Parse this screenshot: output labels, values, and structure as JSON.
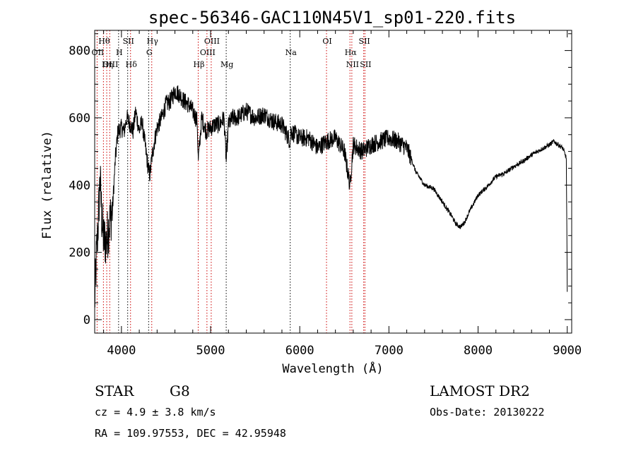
{
  "chart_data": {
    "type": "line",
    "title": "spec-56346-GAC110N45V1_sp01-220.fits",
    "xlabel": "Wavelength (Å)",
    "ylabel": "Flux (relative)",
    "xlim": [
      3700,
      9050
    ],
    "ylim": [
      -40,
      860
    ],
    "x_ticks": [
      4000,
      5000,
      6000,
      7000,
      8000,
      9000
    ],
    "y_ticks": [
      0,
      200,
      400,
      600,
      800
    ],
    "grid": false,
    "series": [
      {
        "x": [
          3700,
          3720,
          3740,
          3760,
          3780,
          3800,
          3830,
          3860,
          3900,
          3930,
          3960,
          4000,
          4030,
          4060,
          4100,
          4130,
          4160,
          4200,
          4230,
          4260,
          4300,
          4320,
          4340,
          4370,
          4400,
          4450,
          4500,
          4550,
          4600,
          4650,
          4700,
          4750,
          4800,
          4850,
          4861,
          4900,
          4950,
          5000,
          5050,
          5100,
          5150,
          5175,
          5200,
          5250,
          5300,
          5400,
          5500,
          5600,
          5700,
          5800,
          5893,
          5900,
          6000,
          6100,
          6200,
          6300,
          6400,
          6500,
          6563,
          6600,
          6700,
          6800,
          6900,
          7000,
          7100,
          7200,
          7250,
          7300,
          7400,
          7500,
          7600,
          7700,
          7750,
          7800,
          7850,
          7900,
          8000,
          8100,
          8200,
          8300,
          8400,
          8500,
          8600,
          8700,
          8800,
          8850,
          8900,
          8950,
          8990,
          9000
        ],
        "y": [
          50,
          190,
          290,
          420,
          300,
          240,
          230,
          280,
          330,
          470,
          560,
          570,
          560,
          600,
          580,
          560,
          620,
          560,
          590,
          530,
          450,
          430,
          480,
          530,
          570,
          600,
          640,
          650,
          680,
          670,
          650,
          640,
          620,
          590,
          470,
          600,
          560,
          570,
          580,
          580,
          600,
          470,
          580,
          600,
          600,
          620,
          600,
          610,
          590,
          580,
          530,
          560,
          540,
          540,
          510,
          530,
          540,
          500,
          400,
          520,
          500,
          520,
          530,
          540,
          530,
          510,
          480,
          440,
          400,
          390,
          350,
          310,
          285,
          275,
          290,
          320,
          370,
          395,
          425,
          435,
          455,
          470,
          490,
          505,
          520,
          530,
          520,
          510,
          480,
          80
        ]
      }
    ],
    "spectral_lines": [
      {
        "label": "Hθ",
        "x": 3798,
        "color": "#cc0000",
        "row": 1
      },
      {
        "label": "OII",
        "x": 3727,
        "color": "#cc0000",
        "row": 2
      },
      {
        "label": "OIII",
        "x": 3869,
        "color": "#cc0000",
        "row": 3
      },
      {
        "label": "Hη",
        "x": 3835,
        "color": "#cc0000",
        "row": 3
      },
      {
        "label": "SII",
        "x": 4070,
        "color": "#000000",
        "row": 1
      },
      {
        "label": "H",
        "x": 3968,
        "color": "#000000",
        "row": 2
      },
      {
        "label": "Hδ",
        "x": 4102,
        "color": "#cc0000",
        "row": 3
      },
      {
        "label": "Hγ",
        "x": 4340,
        "color": "#cc0000",
        "row": 1
      },
      {
        "label": "G",
        "x": 4305,
        "color": "#000000",
        "row": 2
      },
      {
        "label": "OIII",
        "x": 5007,
        "color": "#cc0000",
        "row": 1
      },
      {
        "label": "OIII",
        "x": 4959,
        "color": "#cc0000",
        "row": 2
      },
      {
        "label": "Hβ",
        "x": 4861,
        "color": "#cc0000",
        "row": 3
      },
      {
        "label": "Mg",
        "x": 5175,
        "color": "#000000",
        "row": 3
      },
      {
        "label": "Na",
        "x": 5893,
        "color": "#000000",
        "row": 2
      },
      {
        "label": "OI",
        "x": 6300,
        "color": "#cc0000",
        "row": 1
      },
      {
        "label": "SII",
        "x": 6717,
        "color": "#cc0000",
        "row": 1
      },
      {
        "label": "Hα",
        "x": 6563,
        "color": "#cc0000",
        "row": 2
      },
      {
        "label": "NII",
        "x": 6584,
        "color": "#cc0000",
        "row": 3
      },
      {
        "label": "SII",
        "x": 6731,
        "color": "#cc0000",
        "row": 3
      }
    ]
  },
  "info": {
    "class_label": "STAR",
    "subclass": "G8",
    "survey": "LAMOST DR2",
    "velocity": "cz = 4.9 ± 3.8 km/s",
    "obs_date": "Obs-Date: 20130222",
    "coordinates": "RA = 109.97553, DEC =  42.95948"
  }
}
